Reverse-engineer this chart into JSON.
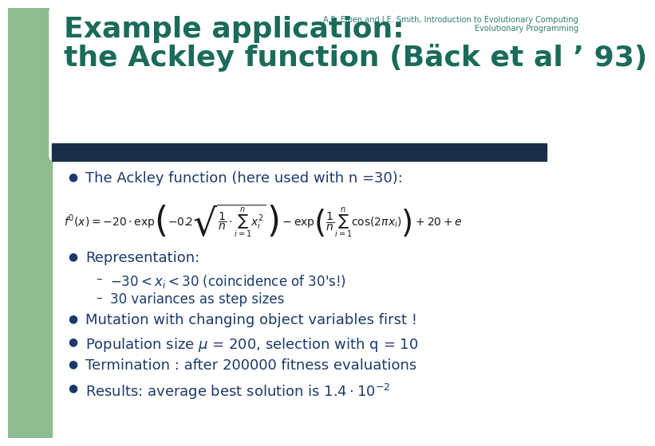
{
  "header_text": "A.E. Eiben and J.E. Smith, Introduction to Evolutionary Computing\nEvolutionary Programming",
  "title_line1": "Example application:",
  "title_line2": "the Ackley function (Bäck et al ’ 93)",
  "title_color": "#1a6b5a",
  "bg_color": "#ffffff",
  "header_color": "#2e7d6e",
  "bullet_color": "#1a3a6b",
  "bullet1": "The Ackley function (here used with n =30):",
  "bullet2": "Representation:",
  "sub1": "$-30 < x_i < 30$ (coincidence of 30's!)",
  "sub2": "30 variances as step sizes",
  "bullet3": "Mutation with changing object variables first !",
  "bullet4": "Population size $\\mu$ = 200, selection with q = 10",
  "bullet5": "Termination : after 200000 fitness evaluations",
  "bullet6": "Results: average best solution is $1.4 \\cdot 10^{-2}$",
  "left_strip_color": "#8fbc8f",
  "dark_strip_color": "#1a2e4a",
  "corner_color": "#8fbc8f",
  "white_bg_color": "#f5f5f5"
}
